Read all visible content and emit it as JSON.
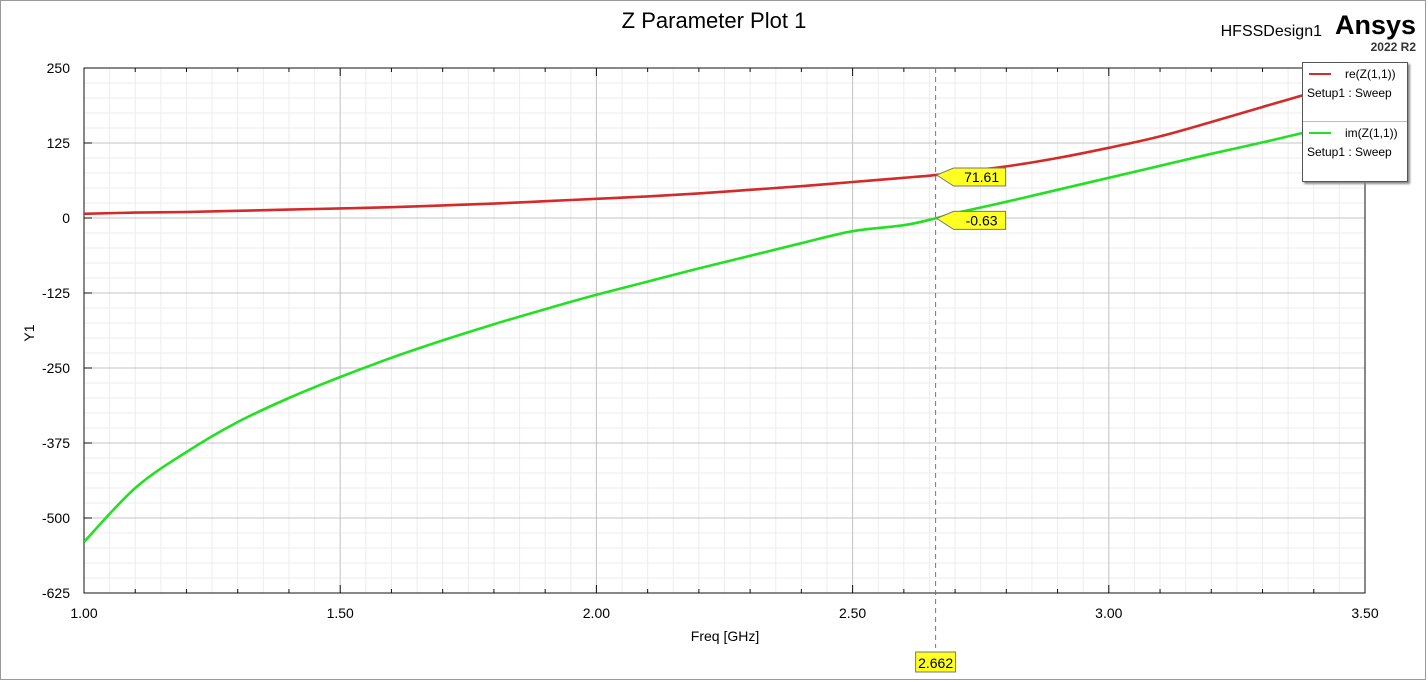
{
  "header": {
    "title": "Z Parameter Plot 1",
    "design_name": "HFSSDesign1",
    "brand": "Ansys",
    "version": "2022 R2"
  },
  "chart_data": {
    "type": "line",
    "title": "Z Parameter Plot 1",
    "xlabel": "Freq [GHz]",
    "ylabel": "Y1",
    "xlim": [
      1.0,
      3.5
    ],
    "ylim": [
      -625,
      250
    ],
    "x_ticks": [
      1.0,
      1.5,
      2.0,
      2.5,
      3.0,
      3.5
    ],
    "x_tick_labels": [
      "1.00",
      "1.50",
      "2.00",
      "2.50",
      "3.00",
      "3.50"
    ],
    "y_ticks": [
      250,
      125,
      0,
      -125,
      -250,
      -375,
      -500,
      -625
    ],
    "y_tick_labels": [
      "250",
      "125",
      "0",
      "-125",
      "-250",
      "-375",
      "-500",
      "-625"
    ],
    "grid": true,
    "x": [
      1.0,
      1.1,
      1.2,
      1.3,
      1.4,
      1.5,
      1.6,
      1.7,
      1.8,
      1.9,
      2.0,
      2.1,
      2.2,
      2.3,
      2.4,
      2.5,
      2.6,
      2.662,
      2.7,
      2.8,
      2.9,
      3.0,
      3.1,
      3.2,
      3.3,
      3.4,
      3.5
    ],
    "series": [
      {
        "name": "re(Z(1,1))",
        "setup": "Setup1 : Sweep",
        "color": "#d42a2a",
        "values": [
          7,
          9,
          10,
          12,
          14,
          16,
          18,
          21,
          24,
          28,
          32,
          36,
          41,
          47,
          53,
          60,
          67,
          71.61,
          76,
          86,
          100,
          117,
          136,
          160,
          185,
          210,
          237
        ]
      },
      {
        "name": "im(Z(1,1))",
        "setup": "Setup1 : Sweep",
        "color": "#22e022",
        "values": [
          -540,
          -450,
          -390,
          -340,
          -300,
          -265,
          -233,
          -204,
          -177,
          -152,
          -128,
          -106,
          -84,
          -63,
          -42,
          -22,
          -12,
          -0.63,
          8,
          27,
          47,
          67,
          87,
          107,
          126,
          146,
          165
        ]
      }
    ],
    "marker": {
      "x": 2.662,
      "x_label": "2.662",
      "labels": [
        "71.61",
        "-0.63"
      ]
    },
    "legend_position": "top-right"
  }
}
